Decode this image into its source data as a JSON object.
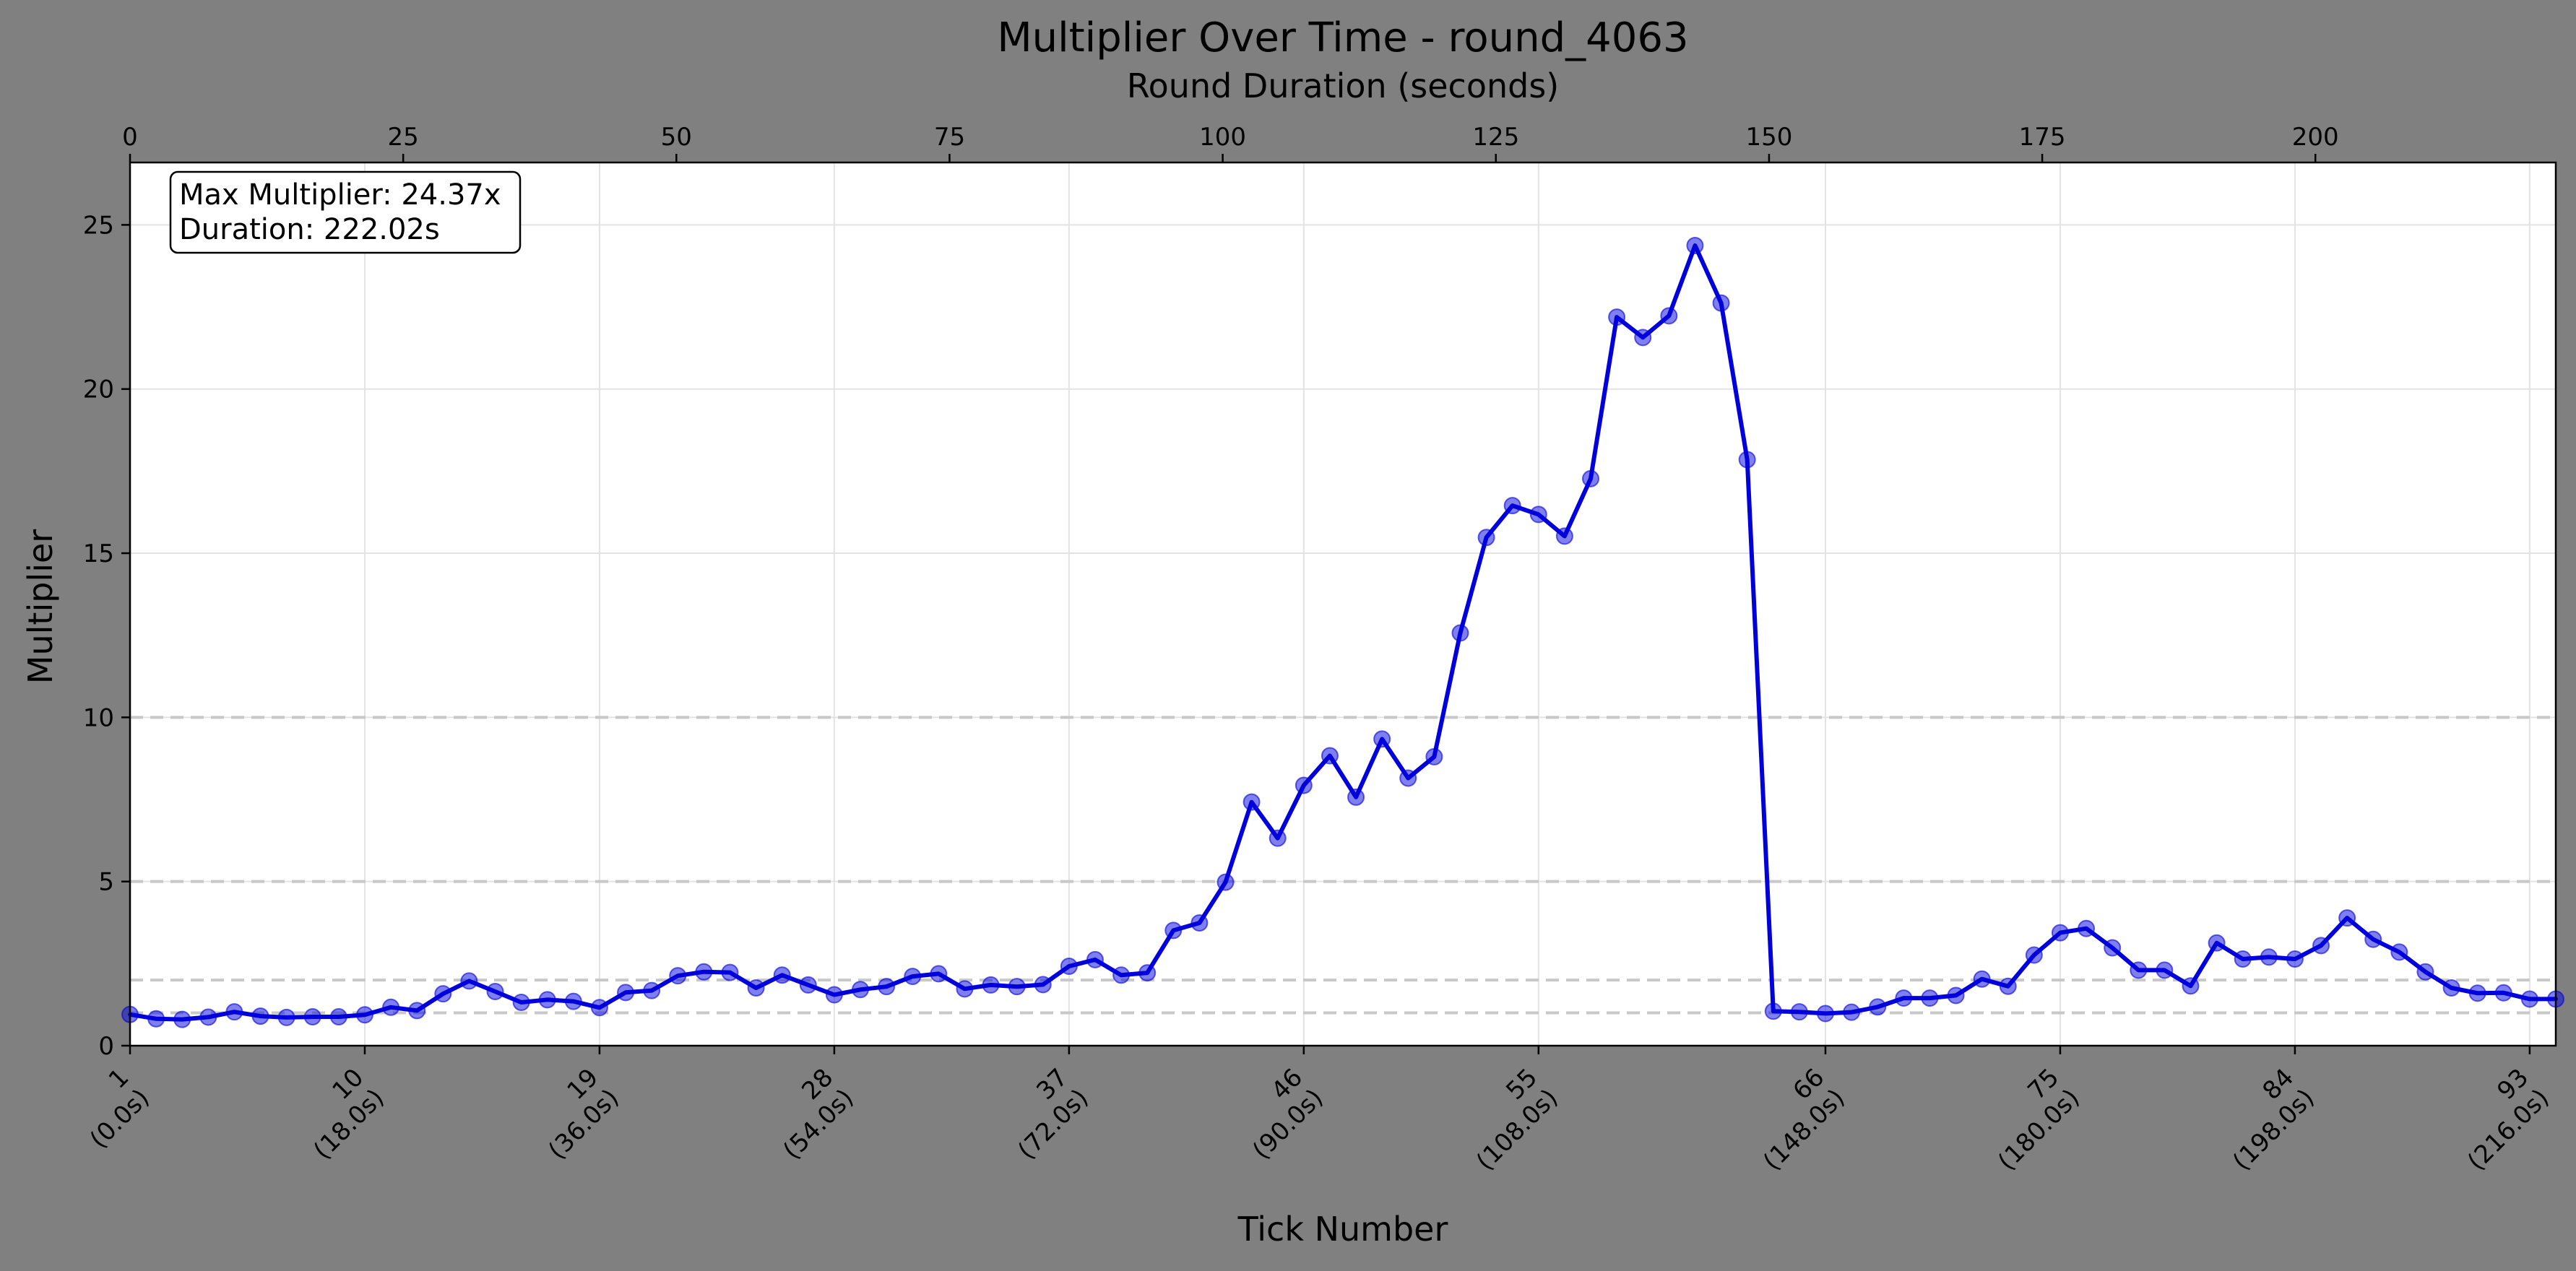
{
  "chart_data": {
    "type": "line",
    "title": "Multiplier Over Time - round_4063",
    "xlabel": "Tick Number",
    "ylabel": "Multiplier",
    "top_xlabel": "Round Duration (seconds)",
    "ylim": [
      0,
      26.9
    ],
    "yticks": [
      0,
      5,
      10,
      15,
      20,
      25
    ],
    "top_ticks": [
      0,
      25,
      50,
      75,
      100,
      125,
      150,
      175,
      200
    ],
    "bottom_ticks": [
      {
        "idx": 0,
        "tick": "1",
        "time": "(0.0s)"
      },
      {
        "idx": 9,
        "tick": "10",
        "time": "(18.0s)"
      },
      {
        "idx": 18,
        "tick": "19",
        "time": "(36.0s)"
      },
      {
        "idx": 27,
        "tick": "28",
        "time": "(54.0s)"
      },
      {
        "idx": 36,
        "tick": "37",
        "time": "(72.0s)"
      },
      {
        "idx": 45,
        "tick": "46",
        "time": "(90.0s)"
      },
      {
        "idx": 54,
        "tick": "55",
        "time": "(108.0s)"
      },
      {
        "idx": 65,
        "tick": "66",
        "time": "(148.0s)"
      },
      {
        "idx": 74,
        "tick": "75",
        "time": "(180.0s)"
      },
      {
        "idx": 83,
        "tick": "84",
        "time": "(198.0s)"
      },
      {
        "idx": 92,
        "tick": "93",
        "time": "(216.0s)"
      }
    ],
    "reference_lines": [
      1,
      2,
      5,
      10
    ],
    "grid": true,
    "series": [
      {
        "color": "#0000dd",
        "values": [
          0.95,
          0.82,
          0.8,
          0.87,
          1.03,
          0.9,
          0.86,
          0.88,
          0.88,
          0.94,
          1.17,
          1.07,
          1.58,
          1.97,
          1.65,
          1.32,
          1.4,
          1.35,
          1.16,
          1.62,
          1.68,
          2.13,
          2.25,
          2.23,
          1.76,
          2.15,
          1.85,
          1.55,
          1.71,
          1.8,
          2.11,
          2.19,
          1.73,
          1.85,
          1.8,
          1.86,
          2.42,
          2.62,
          2.15,
          2.22,
          3.51,
          3.74,
          4.98,
          7.42,
          6.32,
          7.93,
          8.83,
          7.57,
          9.34,
          8.15,
          8.8,
          12.57,
          15.48,
          16.45,
          16.18,
          15.52,
          17.27,
          22.19,
          21.57,
          22.23,
          24.37,
          22.62,
          17.85,
          1.05,
          1.03,
          0.98,
          1.02,
          1.18,
          1.45,
          1.45,
          1.53,
          2.03,
          1.81,
          2.76,
          3.44,
          3.57,
          2.98,
          2.3,
          2.3,
          1.82,
          3.13,
          2.64,
          2.7,
          2.64,
          3.05,
          3.89,
          3.24,
          2.85,
          2.25,
          1.76,
          1.6,
          1.61,
          1.42,
          1.42
        ]
      }
    ],
    "annotation": {
      "line1": "Max Multiplier: 24.37x",
      "line2": "Duration: 222.02s"
    }
  }
}
